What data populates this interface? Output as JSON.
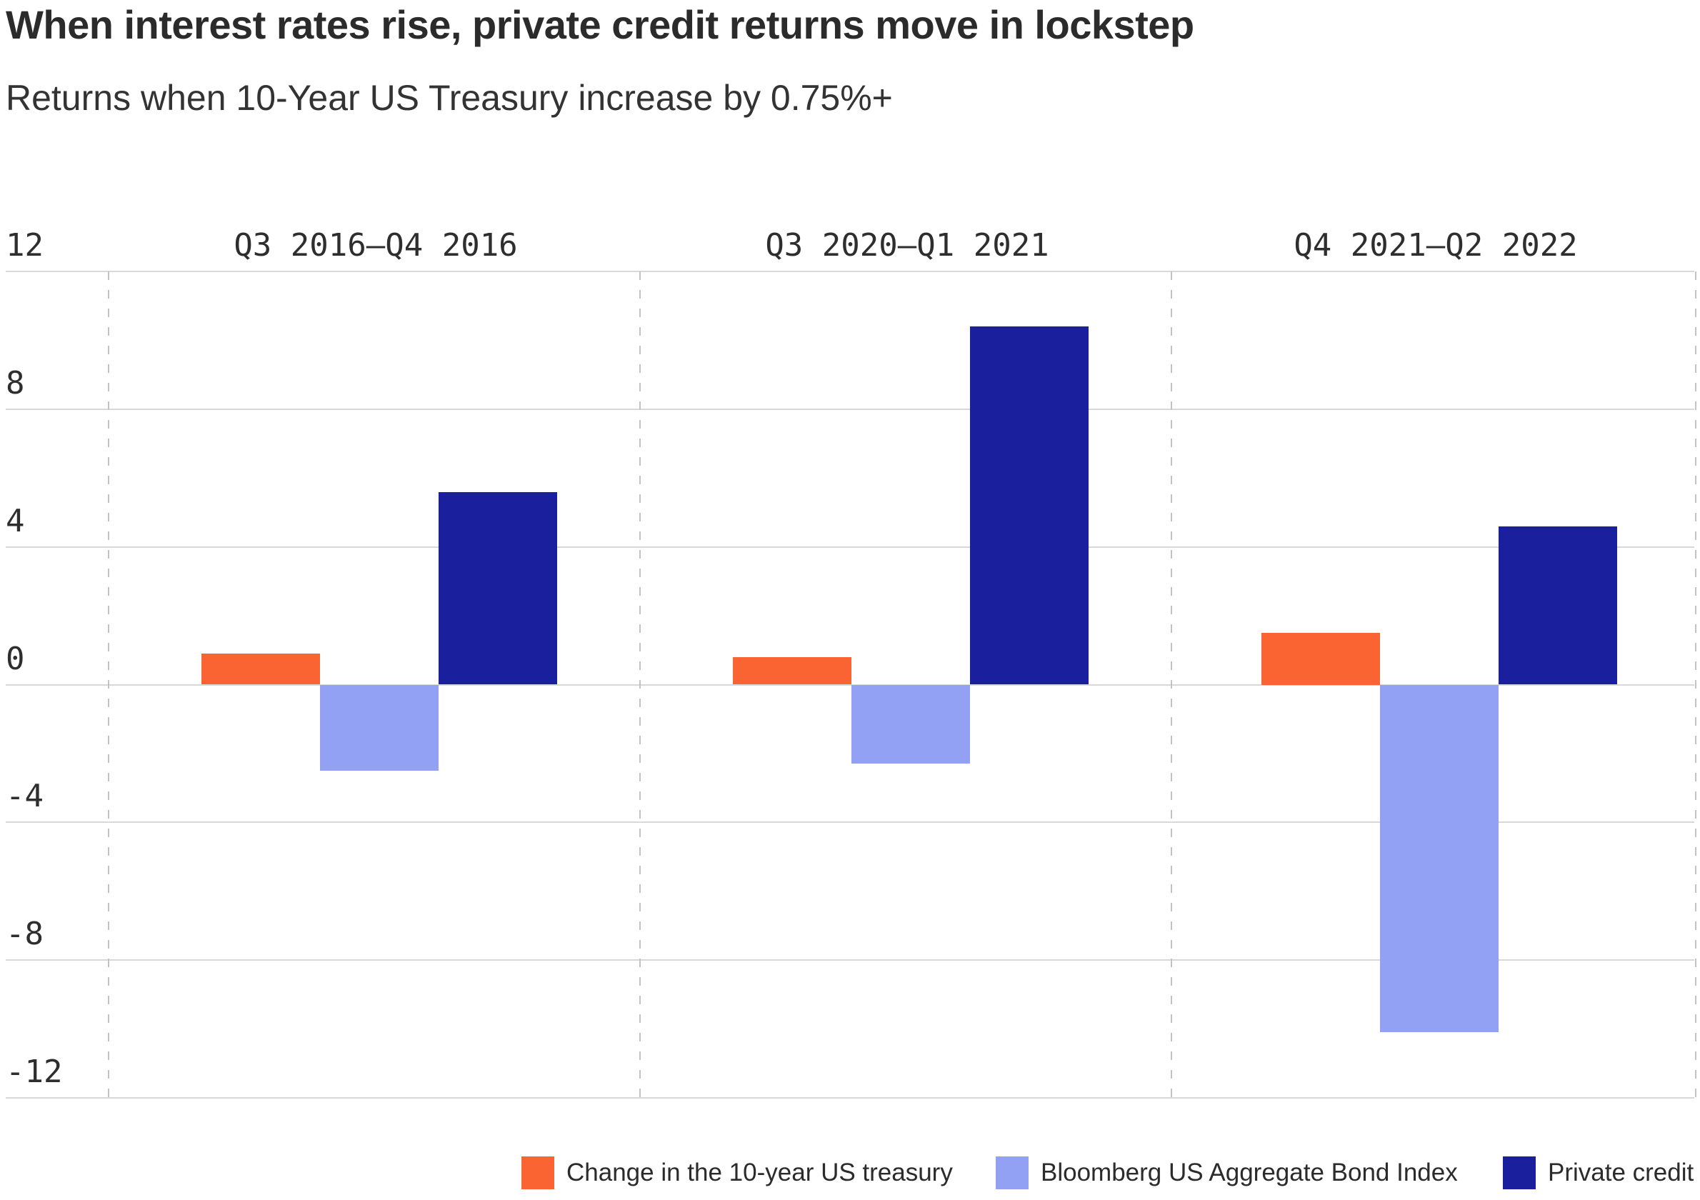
{
  "header": {
    "title": "When interest rates rise, private credit returns move in lockstep",
    "subtitle": "Returns when 10-Year US Treasury increase by 0.75%+"
  },
  "chart_data": {
    "type": "bar",
    "categories": [
      "Q3 2016–Q4 2016",
      "Q3 2020–Q1 2021",
      "Q4 2021–Q2 2022"
    ],
    "series": [
      {
        "name": "Change in the 10-year US treasury",
        "color": "#FA6433",
        "values": [
          0.9,
          0.8,
          1.5
        ]
      },
      {
        "name": "Bloomberg US Aggregate Bond Index",
        "color": "#93A1F4",
        "values": [
          -2.5,
          -2.3,
          -10.1
        ]
      },
      {
        "name": "Private credit",
        "color": "#1A1F9E",
        "values": [
          5.6,
          10.4,
          4.6
        ]
      }
    ],
    "y_ticks": [
      12,
      8,
      4,
      0,
      -4,
      -8,
      -12
    ],
    "ylim": [
      -12,
      12
    ],
    "xlabel": "",
    "ylabel": "",
    "grid": "horizontal-solid, vertical-dashed-group-separators",
    "legend_position": "bottom"
  },
  "style": {
    "grid_color": "#D8D8D8",
    "separator_color": "#C4C4C4",
    "text_color": "#2B2B2B"
  }
}
